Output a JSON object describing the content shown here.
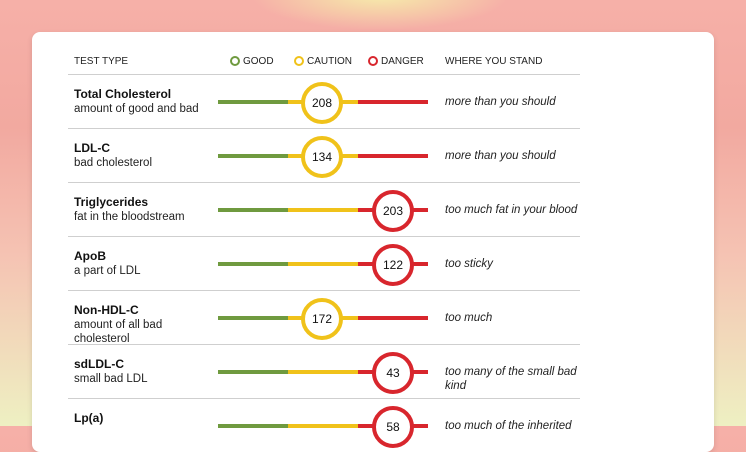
{
  "header": {
    "test_type": "TEST TYPE",
    "good": "GOOD",
    "caution": "CAUTION",
    "danger": "DANGER",
    "where": "WHERE YOU STAND"
  },
  "colors": {
    "good": "#6f9a3f",
    "caution": "#f0c21a",
    "danger": "#d8262d"
  },
  "rows": [
    {
      "name": "Total Cholesterol",
      "desc": "amount of good and bad",
      "value": "208",
      "level": "caution",
      "stand": "more than you should"
    },
    {
      "name": "LDL-C",
      "desc": "bad cholesterol",
      "value": "134",
      "level": "caution",
      "stand": "more than you should"
    },
    {
      "name": "Triglycerides",
      "desc": "fat in the bloodstream",
      "value": "203",
      "level": "danger",
      "stand": "too much fat in your blood"
    },
    {
      "name": "ApoB",
      "desc": "a part of LDL",
      "value": "122",
      "level": "danger",
      "stand": "too sticky"
    },
    {
      "name": "Non-HDL-C",
      "desc": "amount of all bad cholesterol",
      "value": "172",
      "level": "caution",
      "stand": "too much"
    },
    {
      "name": "sdLDL-C",
      "desc": "small bad LDL",
      "value": "43",
      "level": "danger",
      "stand": "too many of the small bad kind"
    },
    {
      "name": "Lp(a)",
      "desc": "",
      "value": "58",
      "level": "danger",
      "stand": "too much of the inherited"
    }
  ]
}
